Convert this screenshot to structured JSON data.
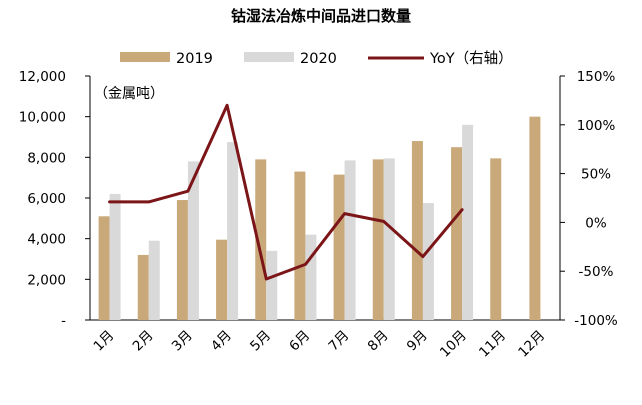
{
  "chart_data": {
    "type": "bar",
    "title": "钴湿法冶炼中间品进口数量",
    "unit_label": "（金属吨）",
    "categories": [
      "1月",
      "2月",
      "3月",
      "4月",
      "5月",
      "6月",
      "7月",
      "8月",
      "9月",
      "10月",
      "11月",
      "12月"
    ],
    "series": [
      {
        "name": "2019",
        "type": "bar",
        "axis": "left",
        "color": "#c9a97a",
        "values": [
          5100,
          3200,
          5900,
          3950,
          7900,
          7300,
          7150,
          7900,
          8800,
          8500,
          7950,
          10000
        ]
      },
      {
        "name": "2020",
        "type": "bar",
        "axis": "left",
        "color": "#d9d9d9",
        "values": [
          6200,
          3900,
          7800,
          8750,
          3400,
          4200,
          7850,
          7950,
          5750,
          9600,
          null,
          null
        ]
      },
      {
        "name": "YoY（右轴）",
        "type": "line",
        "axis": "right",
        "color": "#7b1518",
        "values": [
          21,
          21,
          32,
          120,
          -58,
          -43,
          9,
          1,
          -35,
          13,
          null,
          null
        ]
      }
    ],
    "left_axis": {
      "ylim": [
        0,
        12000
      ],
      "tick_values": [
        0,
        2000,
        4000,
        6000,
        8000,
        10000,
        12000
      ],
      "tick_labels": [
        "-",
        "2,000",
        "4,000",
        "6,000",
        "8,000",
        "10,000",
        "12,000"
      ]
    },
    "right_axis": {
      "ylim": [
        -100,
        150
      ],
      "tick_values": [
        -100,
        -50,
        0,
        50,
        100,
        150
      ],
      "tick_labels": [
        "-100%",
        "-50%",
        "0%",
        "50%",
        "100%",
        "150%"
      ]
    },
    "legend": {
      "position": "top",
      "items": [
        {
          "label": "2019",
          "kind": "bar"
        },
        {
          "label": "2020",
          "kind": "bar"
        },
        {
          "label": "YoY（右轴）",
          "kind": "line"
        }
      ]
    }
  }
}
